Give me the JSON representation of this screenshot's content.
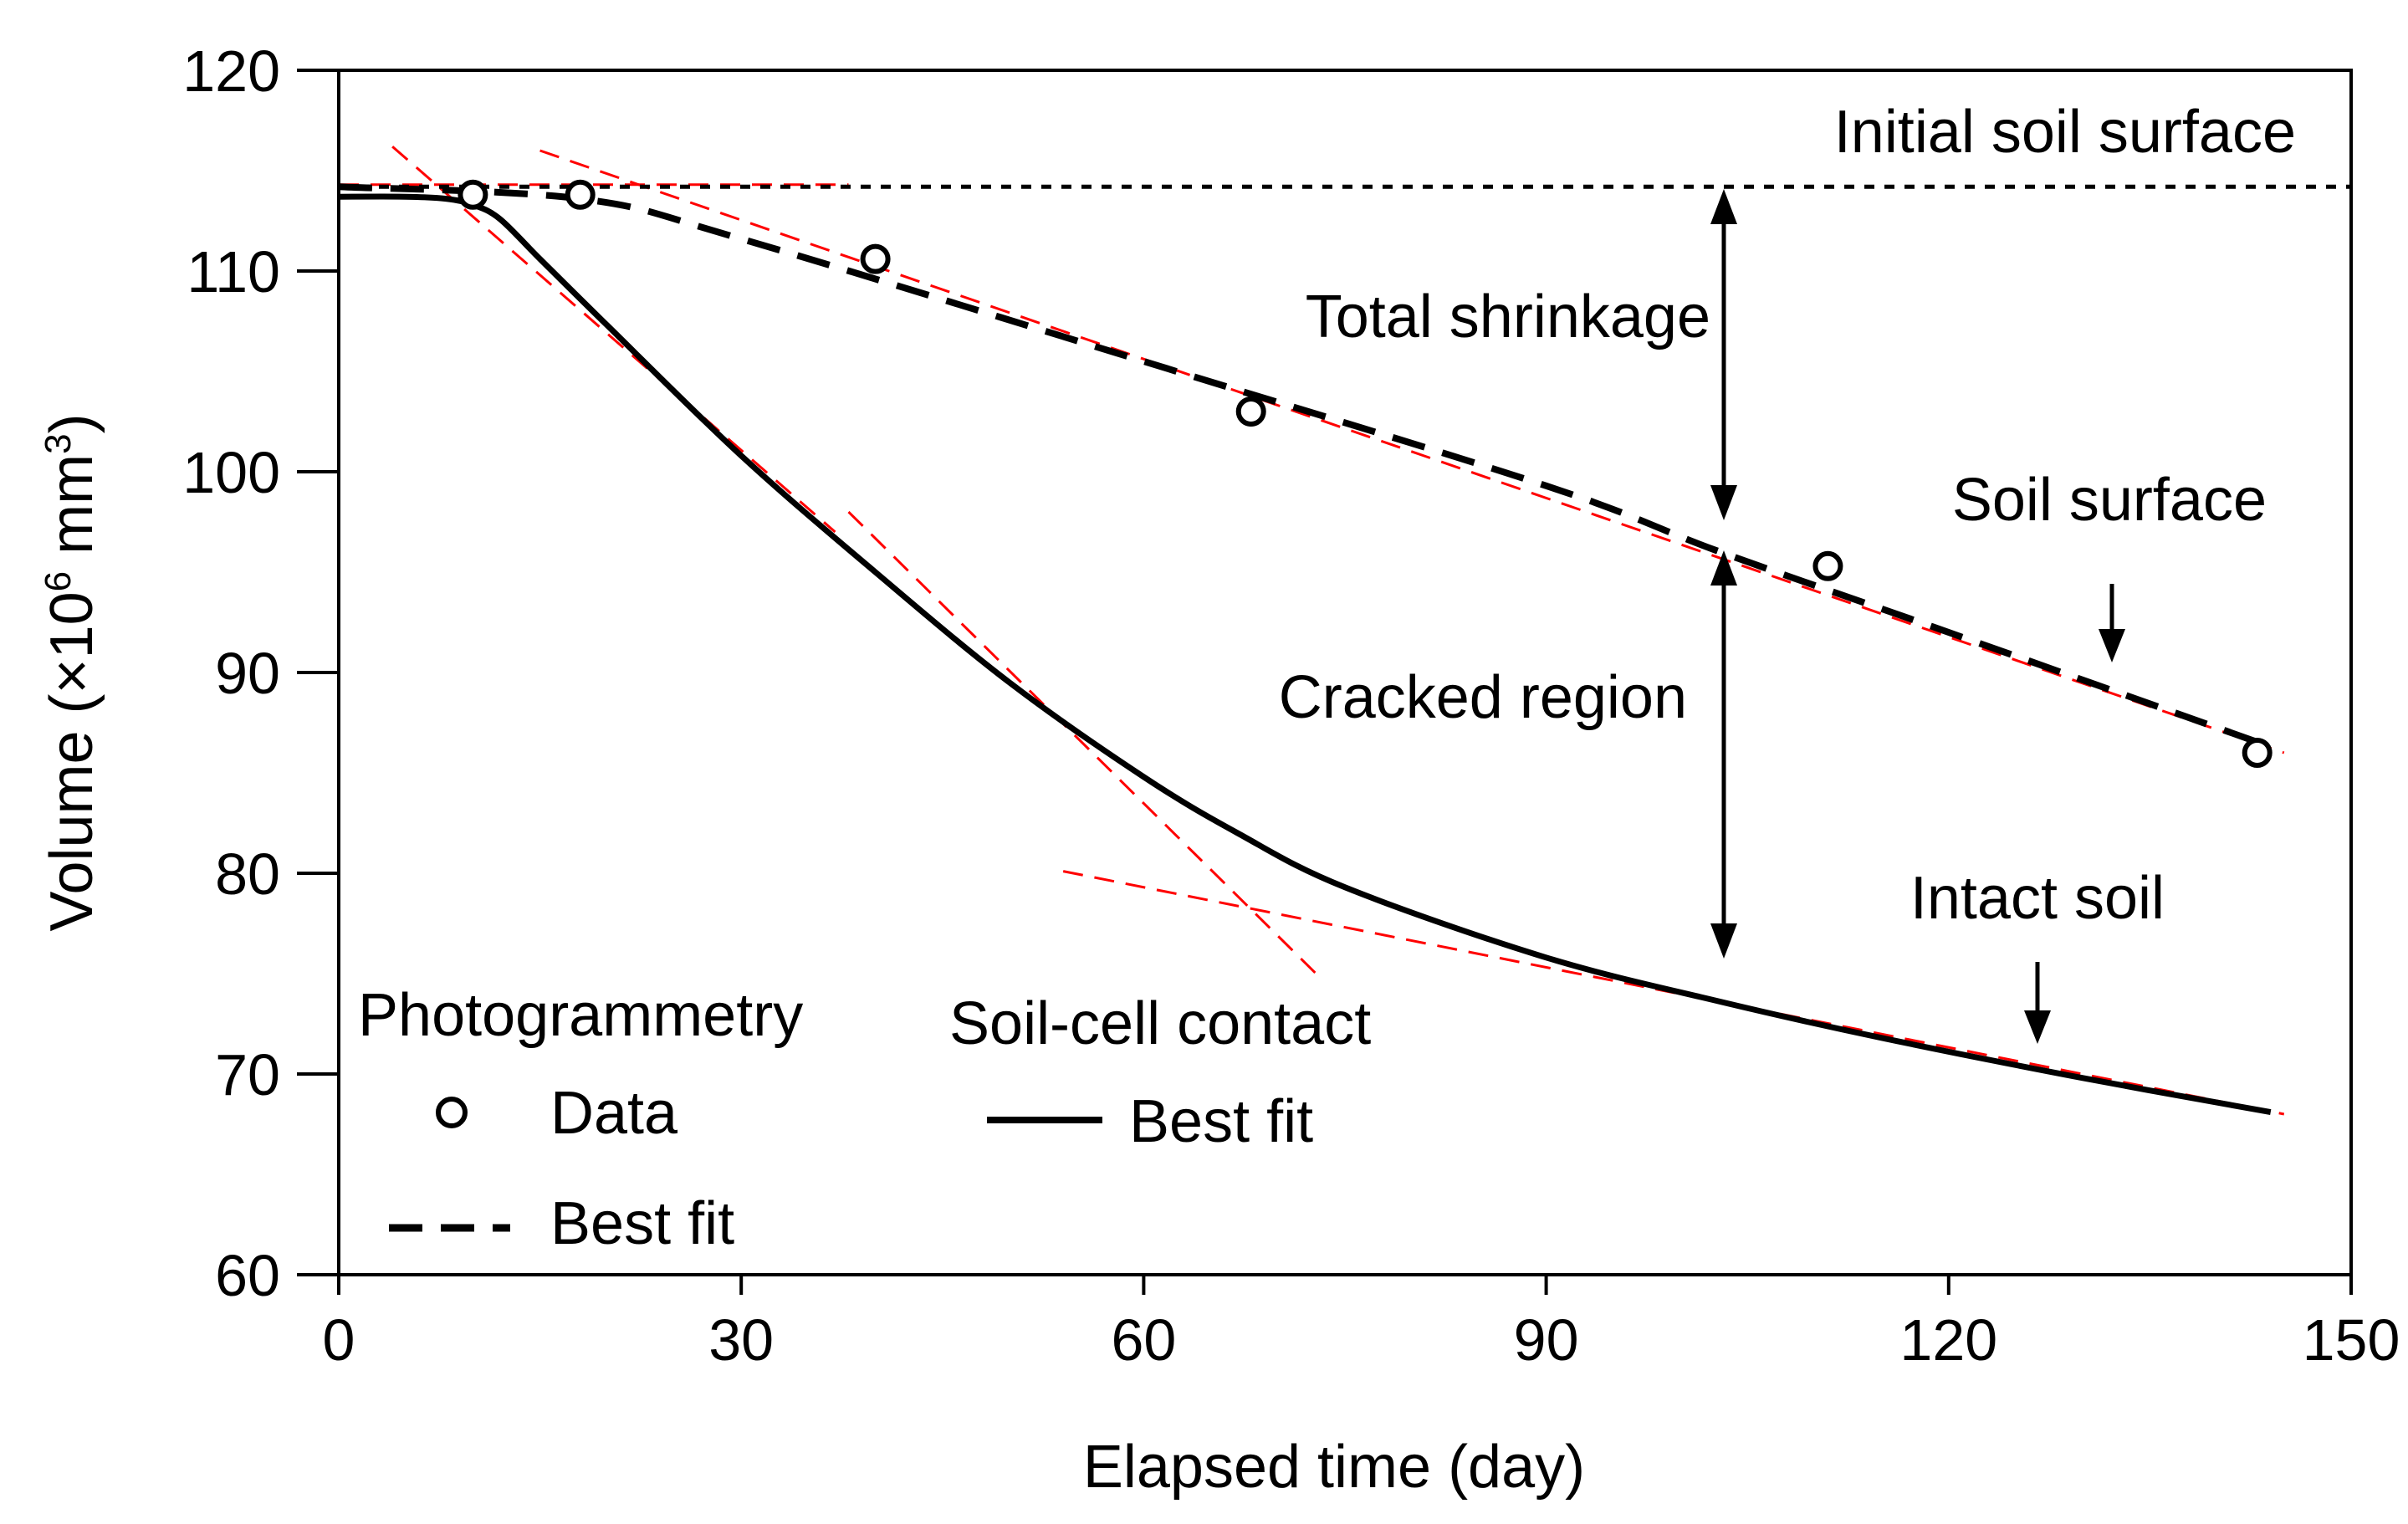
{
  "chart_data": {
    "type": "line",
    "xlabel": "Elapsed time (day)",
    "ylabel_main": "Volume (",
    "ylabel_mult": "×",
    "ylabel_num": "10",
    "ylabel_exp": "6",
    "ylabel_unit": " mm",
    "ylabel_unit_exp": "3",
    "ylabel_close": ")",
    "xlim": [
      0,
      150
    ],
    "ylim": [
      60,
      120
    ],
    "x_ticks": [
      0,
      30,
      60,
      90,
      120,
      150
    ],
    "y_ticks": [
      60,
      70,
      80,
      90,
      100,
      110,
      120
    ],
    "grid": false,
    "annotations": {
      "initial_surface": "Initial soil surface",
      "total_shrinkage": "Total shrinkage",
      "cracked_region": "Cracked region",
      "soil_surface": "Soil surface",
      "intact_soil": "Intact soil"
    },
    "legend": {
      "photogrammetry_title": "Photogrammetry",
      "data_label": "Data",
      "best_fit_label": "Best fit",
      "contact_title": "Soil-cell contact",
      "contact_best_fit_label": "Best fit"
    },
    "initial_surface_level": 114.2,
    "series": [
      {
        "name": "Photogrammetry Data",
        "style": "circles",
        "x": [
          10,
          18,
          40,
          68,
          111,
          143
        ],
        "y": [
          113.8,
          113.8,
          110.6,
          103.0,
          95.3,
          86.0
        ]
      },
      {
        "name": "Photogrammetry Best fit",
        "style": "dashed",
        "x": [
          0,
          18,
          30,
          60,
          90,
          103,
          120,
          144
        ],
        "y": [
          114.2,
          113.6,
          111.6,
          105.5,
          99.3,
          96.0,
          92.0,
          86.3
        ]
      },
      {
        "name": "Soil-cell contact Best fit",
        "style": "solid",
        "x": [
          0,
          5,
          8,
          10,
          12,
          15,
          20,
          30,
          40,
          50,
          60,
          67,
          75,
          90,
          103,
          115,
          130,
          144
        ],
        "y": [
          113.7,
          113.7,
          113.6,
          113.3,
          112.6,
          110.6,
          107.3,
          100.8,
          95.0,
          89.5,
          84.8,
          82.0,
          79.3,
          75.8,
          73.6,
          71.8,
          69.8,
          68.1
        ]
      }
    ],
    "tangent_lines": [
      {
        "x": [
          4,
          37
        ],
        "y": [
          116.2,
          97.0
        ]
      },
      {
        "x": [
          0,
          38
        ],
        "y": [
          114.3,
          114.3
        ]
      },
      {
        "x": [
          15,
          145
        ],
        "y": [
          116.0,
          86.0
        ]
      },
      {
        "x": [
          38,
          73
        ],
        "y": [
          98.0,
          74.9
        ]
      },
      {
        "x": [
          54,
          145
        ],
        "y": [
          80.1,
          68.0
        ]
      }
    ],
    "colors": {
      "axis": "#000000",
      "series": "#000000",
      "tangent": "#ff0000"
    }
  }
}
